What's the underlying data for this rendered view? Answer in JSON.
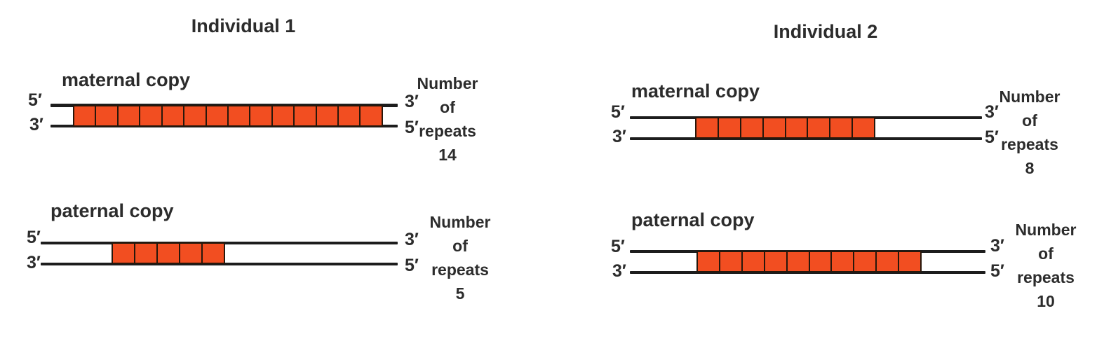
{
  "colors": {
    "repeat_fill": "#F24E21",
    "repeat_border": "#27170B",
    "strand_line": "#1D1D1D",
    "text": "#2C2C2C"
  },
  "individuals": [
    {
      "title": "Individual 1",
      "copies": [
        {
          "label": "maternal copy",
          "left_top": "5′",
          "left_bottom": "3′",
          "right_top": "3′",
          "right_bottom": "5′",
          "number_label": [
            "Number",
            "of",
            "repeats"
          ],
          "repeat_count": 14,
          "repeat_count_text": "14"
        },
        {
          "label": "paternal copy",
          "left_top": "5′",
          "left_bottom": "3′",
          "right_top": "3′",
          "right_bottom": "5′",
          "number_label": [
            "Number",
            "of",
            "repeats"
          ],
          "repeat_count": 5,
          "repeat_count_text": "5"
        }
      ]
    },
    {
      "title": "Individual 2",
      "copies": [
        {
          "label": "maternal copy",
          "left_top": "5′",
          "left_bottom": "3′",
          "right_top": "3′",
          "right_bottom": "5′",
          "number_label": [
            "Number",
            "of",
            "repeats"
          ],
          "repeat_count": 8,
          "repeat_count_text": "8"
        },
        {
          "label": "paternal copy",
          "left_top": "5′",
          "left_bottom": "3′",
          "right_top": "3′",
          "right_bottom": "5′",
          "number_label": [
            "Number",
            "of",
            "repeats"
          ],
          "repeat_count": 10,
          "repeat_count_text": "10"
        }
      ]
    }
  ]
}
